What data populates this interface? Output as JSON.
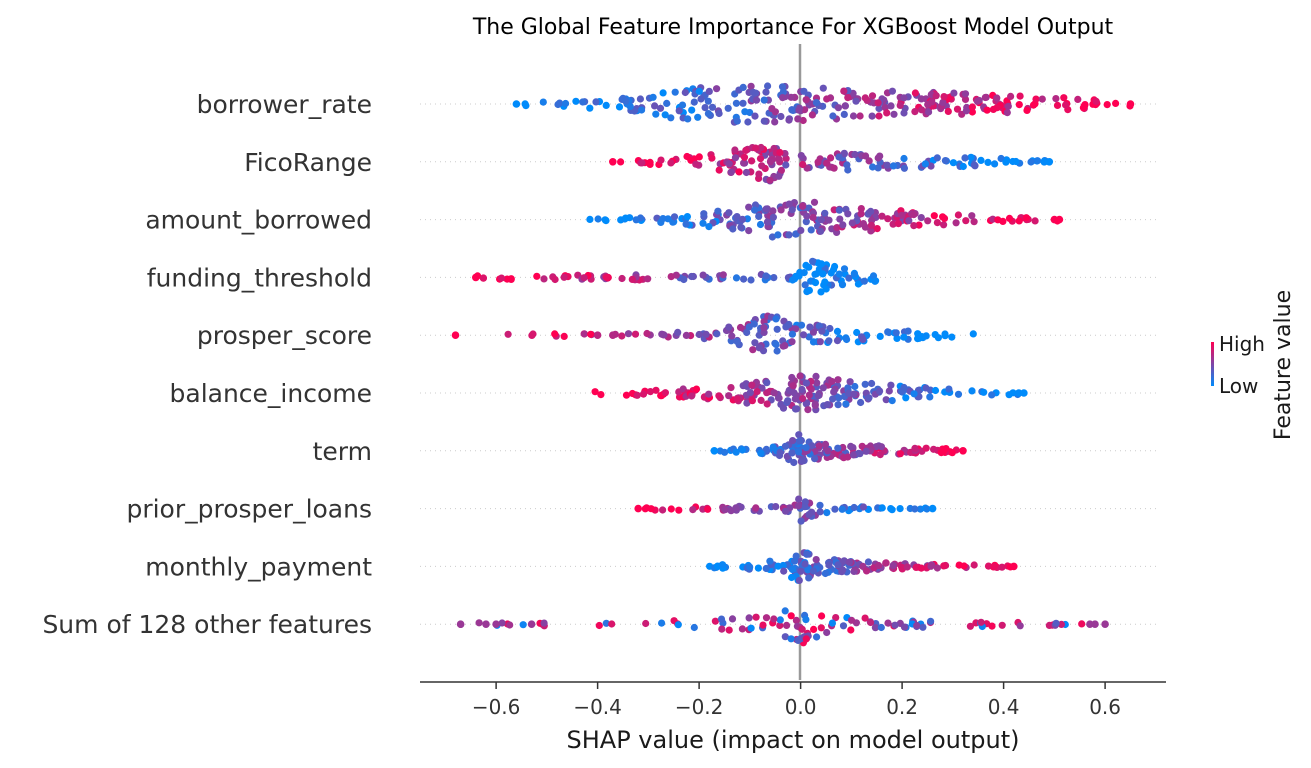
{
  "chart_data": {
    "type": "scatter",
    "subtype": "shap-beeswarm",
    "title": "The Global Feature Importance For XGBoost Model Output",
    "xlabel": "SHAP value (impact on model output)",
    "xlim": [
      -0.75,
      0.72
    ],
    "xticks": [
      -0.6,
      -0.4,
      -0.2,
      0.0,
      0.2,
      0.4,
      0.6
    ],
    "xtick_labels": [
      "−0.6",
      "−0.4",
      "−0.2",
      "0.0",
      "0.2",
      "0.4",
      "0.6"
    ],
    "colorbar": {
      "label": "Feature value",
      "high_label": "High",
      "low_label": "Low",
      "high_color": "#ff0052",
      "low_color": "#008bfb"
    },
    "features": [
      {
        "name": "borrower_rate",
        "range": [
          -0.56,
          0.65
        ],
        "outliers": [
          -0.56,
          0.65
        ],
        "density": [
          [
            -0.5,
            0.05
          ],
          [
            -0.35,
            0.25
          ],
          [
            -0.25,
            0.7
          ],
          [
            -0.15,
            0.95
          ],
          [
            -0.05,
            0.85
          ],
          [
            0.05,
            0.75
          ],
          [
            0.2,
            0.6
          ],
          [
            0.35,
            0.45
          ],
          [
            0.5,
            0.3
          ],
          [
            0.6,
            0.12
          ]
        ],
        "color_trend": "increasing"
      },
      {
        "name": "FicoRange",
        "range": [
          -0.37,
          0.49
        ],
        "outliers": [
          -0.37,
          0.48,
          0.49
        ],
        "density": [
          [
            -0.35,
            0.02
          ],
          [
            -0.25,
            0.15
          ],
          [
            -0.15,
            0.45
          ],
          [
            -0.06,
            0.95
          ],
          [
            -0.02,
            0.4
          ],
          [
            0.02,
            0.3
          ],
          [
            0.1,
            0.4
          ],
          [
            0.25,
            0.25
          ],
          [
            0.4,
            0.12
          ],
          [
            0.47,
            0.02
          ]
        ],
        "color_trend": "decreasing"
      },
      {
        "name": "amount_borrowed",
        "range": [
          -0.44,
          0.51
        ],
        "outliers": [
          0.5,
          0.51
        ],
        "density": [
          [
            -0.44,
            0.02
          ],
          [
            -0.3,
            0.08
          ],
          [
            -0.15,
            0.4
          ],
          [
            -0.05,
            0.9
          ],
          [
            0.0,
            0.85
          ],
          [
            0.05,
            0.8
          ],
          [
            0.15,
            0.5
          ],
          [
            0.3,
            0.2
          ],
          [
            0.42,
            0.06
          ],
          [
            0.5,
            0.02
          ]
        ],
        "color_trend": "increasing"
      },
      {
        "name": "funding_threshold",
        "range": [
          -0.64,
          0.16
        ],
        "outliers": [
          -0.64
        ],
        "density": [
          [
            -0.62,
            0.04
          ],
          [
            -0.4,
            0.08
          ],
          [
            -0.2,
            0.1
          ],
          [
            -0.05,
            0.12
          ],
          [
            -0.01,
            0.1
          ],
          [
            0.0,
            0.5
          ],
          [
            0.02,
            0.8
          ],
          [
            0.08,
            0.45
          ],
          [
            0.14,
            0.2
          ],
          [
            0.16,
            0.05
          ]
        ],
        "color_trend": "decreasing"
      },
      {
        "name": "prosper_score",
        "range": [
          -0.68,
          0.35
        ],
        "outliers": [
          -0.68,
          -0.4,
          -0.37
        ],
        "density": [
          [
            -0.31,
            0.03
          ],
          [
            -0.2,
            0.2
          ],
          [
            -0.12,
            0.5
          ],
          [
            -0.06,
            1.0
          ],
          [
            -0.01,
            0.6
          ],
          [
            0.05,
            0.4
          ],
          [
            0.12,
            0.3
          ],
          [
            0.22,
            0.15
          ],
          [
            0.3,
            0.05
          ],
          [
            0.35,
            0.02
          ]
        ],
        "color_trend": "decreasing"
      },
      {
        "name": "balance_income",
        "range": [
          -0.42,
          0.44
        ],
        "outliers": [
          0.43,
          0.44
        ],
        "density": [
          [
            -0.42,
            0.02
          ],
          [
            -0.3,
            0.08
          ],
          [
            -0.15,
            0.3
          ],
          [
            -0.05,
            0.7
          ],
          [
            0.0,
            0.95
          ],
          [
            0.05,
            0.7
          ],
          [
            0.15,
            0.4
          ],
          [
            0.3,
            0.15
          ],
          [
            0.4,
            0.05
          ],
          [
            0.44,
            0.02
          ]
        ],
        "color_trend": "decreasing"
      },
      {
        "name": "term",
        "range": [
          -0.17,
          0.32
        ],
        "outliers": [
          -0.17,
          0.32
        ],
        "density": [
          [
            -0.16,
            0.03
          ],
          [
            -0.05,
            0.15
          ],
          [
            -0.01,
            0.6
          ],
          [
            0.0,
            0.85
          ],
          [
            0.02,
            0.4
          ],
          [
            0.08,
            0.3
          ],
          [
            0.15,
            0.2
          ],
          [
            0.25,
            0.1
          ],
          [
            0.3,
            0.05
          ],
          [
            0.32,
            0.02
          ]
        ],
        "color_trend": "increasing"
      },
      {
        "name": "prior_prosper_loans",
        "range": [
          -0.32,
          0.26
        ],
        "outliers": [
          -0.32,
          0.26
        ],
        "density": [
          [
            -0.32,
            0.02
          ],
          [
            -0.2,
            0.05
          ],
          [
            -0.08,
            0.08
          ],
          [
            -0.01,
            0.15
          ],
          [
            0.0,
            0.6
          ],
          [
            0.02,
            0.35
          ],
          [
            0.06,
            0.1
          ],
          [
            0.15,
            0.05
          ],
          [
            0.22,
            0.03
          ],
          [
            0.26,
            0.02
          ]
        ],
        "color_trend": "decreasing"
      },
      {
        "name": "monthly_payment",
        "range": [
          -0.18,
          0.42
        ],
        "outliers": [
          0.42
        ],
        "density": [
          [
            -0.18,
            0.03
          ],
          [
            -0.1,
            0.1
          ],
          [
            -0.02,
            0.5
          ],
          [
            0.0,
            0.8
          ],
          [
            0.03,
            0.4
          ],
          [
            0.08,
            0.25
          ],
          [
            0.15,
            0.15
          ],
          [
            0.25,
            0.05
          ],
          [
            0.42,
            0.02
          ]
        ],
        "color_trend": "increasing"
      },
      {
        "name": "Sum of 128 other features",
        "range": [
          -0.67,
          0.6
        ],
        "outliers": [
          -0.67,
          -0.62,
          -0.6,
          -0.53,
          0.57,
          0.58,
          0.6
        ],
        "density": [
          [
            -0.6,
            0.02
          ],
          [
            -0.4,
            0.05
          ],
          [
            -0.2,
            0.15
          ],
          [
            -0.05,
            0.4
          ],
          [
            0.0,
            0.95
          ],
          [
            0.05,
            0.4
          ],
          [
            0.2,
            0.12
          ],
          [
            0.4,
            0.05
          ],
          [
            0.55,
            0.02
          ]
        ],
        "color_trend": "mixed"
      }
    ]
  }
}
